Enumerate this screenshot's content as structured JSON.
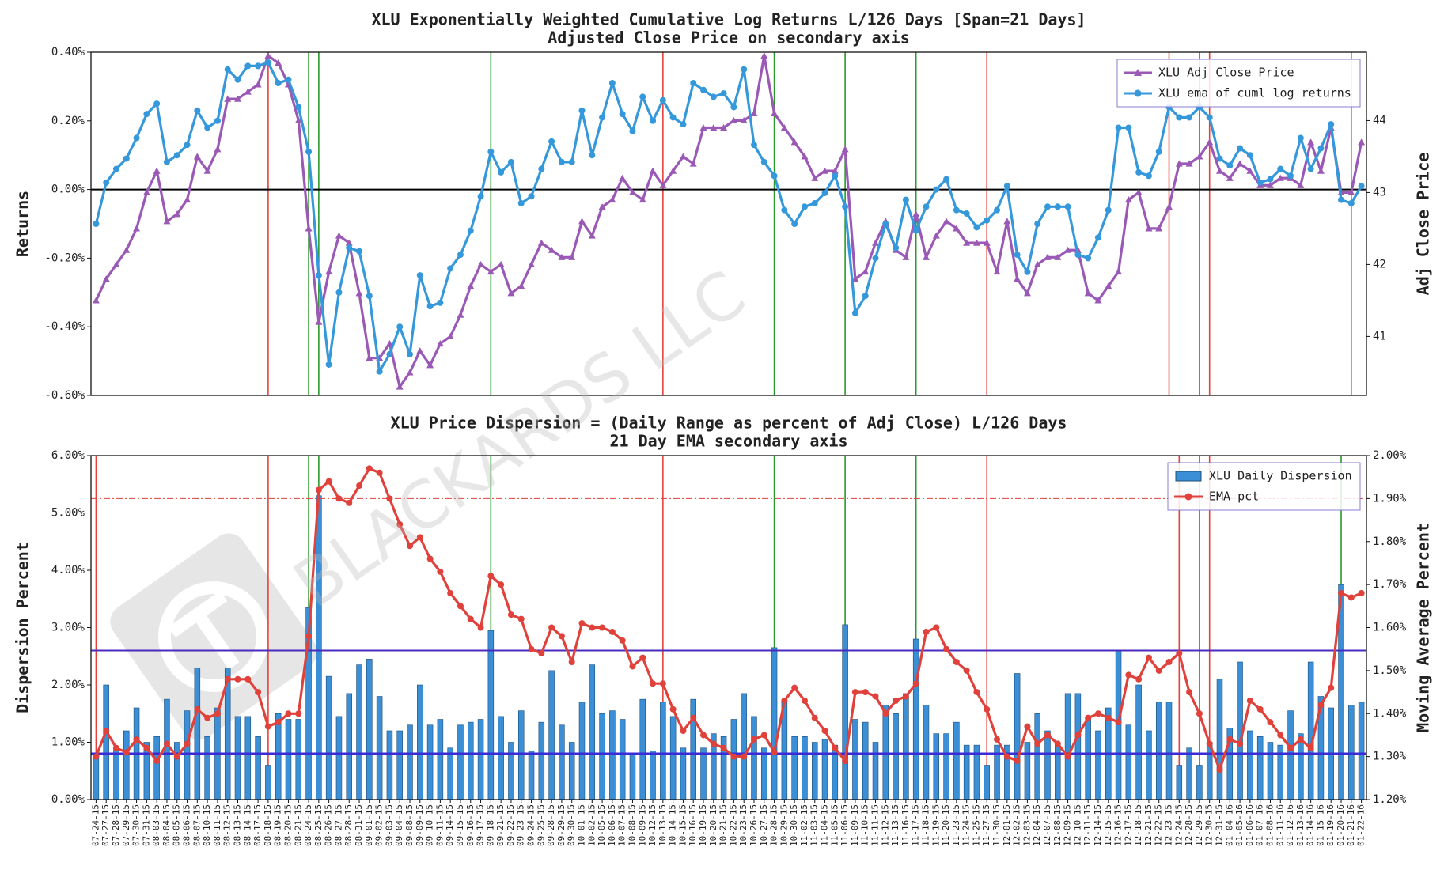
{
  "chart_data": [
    {
      "type": "line",
      "title": "XLU Exponentially Weighted Cumulative Log Returns L/126 Days [Span=21 Days]",
      "subtitle": "Adjusted Close Price on secondary axis",
      "ylabel": "Returns",
      "y2label": "Adj Close Price",
      "ylim": [
        -0.6,
        0.4
      ],
      "yticks": [
        {
          "value": -0.6,
          "label": "-0.60%"
        },
        {
          "value": -0.4,
          "label": "-0.40%"
        },
        {
          "value": -0.2,
          "label": "-0.20%"
        },
        {
          "value": 0,
          "label": "0.00%"
        },
        {
          "value": 0.2,
          "label": "0.20%"
        },
        {
          "value": 0.4,
          "label": "0.40%"
        }
      ],
      "y2lim": [
        40.18,
        44.95
      ],
      "y2ticks": [
        41,
        42,
        43,
        44
      ],
      "legend": "upper right",
      "hlines": [
        {
          "value": 0,
          "color": "#000000",
          "axis": "y"
        }
      ],
      "vlines": [
        {
          "x": "08-18-15",
          "color": "#e8413a"
        },
        {
          "x": "08-24-15",
          "color": "#2a9a2a"
        },
        {
          "x": "08-25-15",
          "color": "#2a9a2a"
        },
        {
          "x": "09-18-15",
          "color": "#2a9a2a"
        },
        {
          "x": "10-13-15",
          "color": "#e8413a"
        },
        {
          "x": "10-28-15",
          "color": "#2a9a2a"
        },
        {
          "x": "11-06-15",
          "color": "#2a9a2a"
        },
        {
          "x": "11-17-15",
          "color": "#2a9a2a"
        },
        {
          "x": "11-27-15",
          "color": "#e8413a"
        },
        {
          "x": "12-23-15",
          "color": "#e8413a"
        },
        {
          "x": "12-29-15",
          "color": "#e8413a"
        },
        {
          "x": "12-30-15",
          "color": "#e8413a"
        },
        {
          "x": "01-21-16",
          "color": "#2a9a2a"
        }
      ],
      "series": [
        {
          "name": "XLU Adj Close Price",
          "color": "#9b59b6",
          "axis": "y2",
          "marker": "triangle",
          "values": [
            41.5,
            41.8,
            42.0,
            42.2,
            42.5,
            43.0,
            43.3,
            42.6,
            42.7,
            42.9,
            43.5,
            43.3,
            43.6,
            44.3,
            44.3,
            44.4,
            44.5,
            44.9,
            44.8,
            44.5,
            44.0,
            42.5,
            41.2,
            41.9,
            42.4,
            42.3,
            41.6,
            40.7,
            40.7,
            40.9,
            40.3,
            40.5,
            40.8,
            40.6,
            40.9,
            41.0,
            41.3,
            41.7,
            42.0,
            41.9,
            42.0,
            41.6,
            41.7,
            42.0,
            42.3,
            42.2,
            42.1,
            42.1,
            42.6,
            42.4,
            42.8,
            42.9,
            43.2,
            43.0,
            42.9,
            43.3,
            43.1,
            43.3,
            43.5,
            43.4,
            43.9,
            43.9,
            43.9,
            44.0,
            44.0,
            44.1,
            44.9,
            44.1,
            43.9,
            43.7,
            43.5,
            43.2,
            43.3,
            43.3,
            43.6,
            41.8,
            41.9,
            42.3,
            42.6,
            42.2,
            42.1,
            42.7,
            42.1,
            42.4,
            42.6,
            42.5,
            42.3,
            42.3,
            42.3,
            41.9,
            42.6,
            41.8,
            41.6,
            42.0,
            42.1,
            42.1,
            42.2,
            42.2,
            41.6,
            41.5,
            41.7,
            41.9,
            42.9,
            43.0,
            42.5,
            42.5,
            42.8,
            43.4,
            43.4,
            43.5,
            43.7,
            43.3,
            43.2,
            43.4,
            43.3,
            43.1,
            43.1,
            43.2,
            43.2,
            43.1,
            43.7,
            43.3,
            43.9,
            43.0,
            43.0,
            43.7
          ]
        },
        {
          "name": "XLU ema of cuml log returns",
          "color": "#3498db",
          "axis": "y",
          "marker": "circle",
          "values": [
            -0.1,
            0.02,
            0.06,
            0.09,
            0.15,
            0.22,
            0.25,
            0.08,
            0.1,
            0.13,
            0.23,
            0.18,
            0.2,
            0.35,
            0.32,
            0.36,
            0.36,
            0.37,
            0.31,
            0.32,
            0.24,
            0.11,
            -0.25,
            -0.51,
            -0.3,
            -0.17,
            -0.18,
            -0.31,
            -0.53,
            -0.48,
            -0.4,
            -0.48,
            -0.25,
            -0.34,
            -0.33,
            -0.23,
            -0.19,
            -0.12,
            -0.02,
            0.11,
            0.05,
            0.08,
            -0.04,
            -0.02,
            0.06,
            0.14,
            0.08,
            0.08,
            0.23,
            0.1,
            0.21,
            0.31,
            0.22,
            0.17,
            0.27,
            0.2,
            0.26,
            0.21,
            0.19,
            0.31,
            0.29,
            0.27,
            0.28,
            0.24,
            0.35,
            0.13,
            0.08,
            0.04,
            -0.06,
            -0.1,
            -0.05,
            -0.04,
            -0.01,
            0.04,
            -0.05,
            -0.36,
            -0.31,
            -0.2,
            -0.1,
            -0.17,
            -0.03,
            -0.12,
            -0.05,
            0.0,
            0.03,
            -0.06,
            -0.07,
            -0.11,
            -0.09,
            -0.06,
            0.01,
            -0.19,
            -0.24,
            -0.1,
            -0.05,
            -0.05,
            -0.05,
            -0.19,
            -0.2,
            -0.14,
            -0.06,
            0.18,
            0.18,
            0.05,
            0.04,
            0.11,
            0.24,
            0.21,
            0.21,
            0.24,
            0.21,
            0.09,
            0.07,
            0.12,
            0.1,
            0.02,
            0.03,
            0.06,
            0.04,
            0.15,
            0.06,
            0.12,
            0.19,
            -0.03,
            -0.04,
            0.01
          ]
        }
      ]
    },
    {
      "type": "bar",
      "title": "XLU Price Dispersion = (Daily Range as percent of Adj Close) L/126 Days",
      "subtitle": "21 Day EMA secondary axis",
      "ylabel": "Dispersion Percent",
      "y2label": "Moving Average Percent",
      "watermark": "BLACKARDS LLC",
      "ylim": [
        0,
        6
      ],
      "yticks": [
        {
          "value": 0,
          "label": "0.00%"
        },
        {
          "value": 1,
          "label": "1.00%"
        },
        {
          "value": 2,
          "label": "2.00%"
        },
        {
          "value": 3,
          "label": "3.00%"
        },
        {
          "value": 4,
          "label": "4.00%"
        },
        {
          "value": 5,
          "label": "5.00%"
        },
        {
          "value": 6,
          "label": "6.00%"
        }
      ],
      "y2lim": [
        1.2,
        2.0
      ],
      "y2ticks": [
        {
          "value": 1.2,
          "label": "1.20%"
        },
        {
          "value": 1.3,
          "label": "1.30%"
        },
        {
          "value": 1.4,
          "label": "1.40%"
        },
        {
          "value": 1.5,
          "label": "1.50%"
        },
        {
          "value": 1.6,
          "label": "1.60%"
        },
        {
          "value": 1.7,
          "label": "1.70%"
        },
        {
          "value": 1.8,
          "label": "1.80%"
        },
        {
          "value": 1.9,
          "label": "1.90%"
        },
        {
          "value": 2.0,
          "label": "2.00%"
        }
      ],
      "legend": "upper right",
      "hlines": [
        {
          "value": 2.6,
          "color": "#4b2bbf",
          "axis": "y",
          "width": 2
        },
        {
          "value": 0.8,
          "color": "#3a2bd6",
          "axis": "y",
          "width": 3
        },
        {
          "value": 1.9,
          "color": "#e0413a",
          "axis": "y2",
          "width": 1,
          "dash": "8 3 2 3"
        }
      ],
      "vlines": [
        {
          "x": "07-24-15",
          "color": "#e8413a"
        },
        {
          "x": "08-18-15",
          "color": "#e8413a"
        },
        {
          "x": "08-24-15",
          "color": "#2a9a2a"
        },
        {
          "x": "08-25-15",
          "color": "#2a9a2a"
        },
        {
          "x": "09-18-15",
          "color": "#2a9a2a"
        },
        {
          "x": "10-13-15",
          "color": "#e8413a"
        },
        {
          "x": "10-28-15",
          "color": "#2a9a2a"
        },
        {
          "x": "11-06-15",
          "color": "#2a9a2a"
        },
        {
          "x": "11-17-15",
          "color": "#2a9a2a"
        },
        {
          "x": "11-27-15",
          "color": "#e8413a"
        },
        {
          "x": "12-24-15",
          "color": "#e8413a"
        },
        {
          "x": "12-29-15",
          "color": "#e8413a"
        },
        {
          "x": "12-30-15",
          "color": "#e8413a"
        },
        {
          "x": "01-20-16",
          "color": "#2a9a2a"
        }
      ],
      "categories": [
        "07-24-15",
        "07-27-15",
        "07-28-15",
        "07-29-15",
        "07-30-15",
        "07-31-15",
        "08-03-15",
        "08-04-15",
        "08-05-15",
        "08-06-15",
        "08-07-15",
        "08-10-15",
        "08-11-15",
        "08-12-15",
        "08-13-15",
        "08-14-15",
        "08-17-15",
        "08-18-15",
        "08-19-15",
        "08-20-15",
        "08-21-15",
        "08-24-15",
        "08-25-15",
        "08-26-15",
        "08-27-15",
        "08-28-15",
        "08-31-15",
        "09-01-15",
        "09-02-15",
        "09-03-15",
        "09-04-15",
        "09-08-15",
        "09-09-15",
        "09-10-15",
        "09-11-15",
        "09-14-15",
        "09-15-15",
        "09-16-15",
        "09-17-15",
        "09-18-15",
        "09-21-15",
        "09-22-15",
        "09-23-15",
        "09-24-15",
        "09-25-15",
        "09-28-15",
        "09-29-15",
        "09-30-15",
        "10-01-15",
        "10-02-15",
        "10-05-15",
        "10-06-15",
        "10-07-15",
        "10-08-15",
        "10-09-15",
        "10-12-15",
        "10-13-15",
        "10-14-15",
        "10-15-15",
        "10-16-15",
        "10-19-15",
        "10-20-15",
        "10-21-15",
        "10-22-15",
        "10-23-15",
        "10-26-15",
        "10-27-15",
        "10-28-15",
        "10-29-15",
        "10-30-15",
        "11-02-15",
        "11-03-15",
        "11-04-15",
        "11-05-15",
        "11-06-15",
        "11-09-15",
        "11-10-15",
        "11-11-15",
        "11-12-15",
        "11-13-15",
        "11-16-15",
        "11-17-15",
        "11-18-15",
        "11-19-15",
        "11-20-15",
        "11-23-15",
        "11-24-15",
        "11-25-15",
        "11-27-15",
        "11-30-15",
        "12-01-15",
        "12-02-15",
        "12-03-15",
        "12-04-15",
        "12-07-15",
        "12-08-15",
        "12-09-15",
        "12-10-15",
        "12-11-15",
        "12-14-15",
        "12-15-15",
        "12-16-15",
        "12-17-15",
        "12-18-15",
        "12-21-15",
        "12-22-15",
        "12-23-15",
        "12-24-15",
        "12-28-15",
        "12-29-15",
        "12-30-15",
        "12-31-15",
        "01-04-16",
        "01-05-16",
        "01-06-16",
        "01-07-16",
        "01-08-16",
        "01-11-16",
        "01-12-16",
        "01-13-16",
        "01-14-16",
        "01-15-16",
        "01-19-16",
        "01-20-16",
        "01-21-16",
        "01-22-16"
      ],
      "series": [
        {
          "name": "XLU Daily Dispersion",
          "type": "bar",
          "color": "#3a8fd6",
          "axis": "y",
          "values": [
            0.8,
            2.0,
            0.9,
            1.2,
            1.6,
            1.0,
            1.1,
            1.75,
            1.0,
            1.55,
            2.3,
            1.1,
            1.6,
            2.3,
            1.45,
            1.45,
            1.1,
            0.6,
            1.5,
            1.4,
            1.4,
            3.35,
            5.3,
            2.15,
            1.45,
            1.85,
            2.35,
            2.45,
            1.8,
            1.2,
            1.2,
            1.3,
            2.0,
            1.3,
            1.4,
            0.9,
            1.3,
            1.35,
            1.4,
            2.95,
            1.45,
            1.0,
            1.55,
            0.85,
            1.35,
            2.25,
            1.3,
            1.0,
            1.7,
            2.35,
            1.5,
            1.55,
            1.4,
            0.8,
            1.75,
            0.85,
            1.7,
            1.45,
            0.9,
            1.75,
            0.9,
            1.15,
            1.1,
            1.4,
            1.85,
            1.45,
            0.9,
            2.65,
            1.7,
            1.1,
            1.1,
            1.0,
            1.05,
            0.95,
            3.05,
            1.4,
            1.35,
            1.0,
            1.65,
            1.5,
            1.85,
            2.8,
            1.65,
            1.15,
            1.15,
            1.35,
            0.95,
            0.95,
            0.6,
            0.95,
            0.95,
            2.2,
            1.0,
            1.5,
            1.2,
            0.95,
            1.85,
            1.85,
            1.45,
            1.2,
            1.6,
            2.6,
            1.3,
            2.0,
            1.2,
            1.7,
            1.7,
            0.6,
            0.9,
            0.6,
            1.0,
            2.1,
            1.25,
            2.4,
            1.2,
            1.1,
            1.0,
            0.95,
            1.55,
            1.15,
            2.4,
            1.8,
            1.6,
            3.75,
            1.65,
            1.7
          ]
        },
        {
          "name": "EMA pct",
          "type": "line",
          "color": "#e0413a",
          "axis": "y2",
          "values": [
            1.3,
            1.36,
            1.32,
            1.31,
            1.34,
            1.32,
            1.29,
            1.33,
            1.3,
            1.33,
            1.41,
            1.39,
            1.4,
            1.48,
            1.48,
            1.48,
            1.45,
            1.37,
            1.38,
            1.4,
            1.4,
            1.58,
            1.92,
            1.94,
            1.9,
            1.89,
            1.93,
            1.97,
            1.96,
            1.9,
            1.84,
            1.79,
            1.81,
            1.76,
            1.73,
            1.68,
            1.65,
            1.62,
            1.6,
            1.72,
            1.7,
            1.63,
            1.62,
            1.55,
            1.54,
            1.6,
            1.58,
            1.52,
            1.61,
            1.6,
            1.6,
            1.59,
            1.57,
            1.51,
            1.53,
            1.47,
            1.47,
            1.41,
            1.36,
            1.39,
            1.35,
            1.33,
            1.32,
            1.3,
            1.3,
            1.34,
            1.35,
            1.31,
            1.43,
            1.46,
            1.43,
            1.39,
            1.36,
            1.32,
            1.29,
            1.45,
            1.45,
            1.44,
            1.4,
            1.43,
            1.44,
            1.47,
            1.59,
            1.6,
            1.55,
            1.52,
            1.5,
            1.45,
            1.41,
            1.34,
            1.3,
            1.29,
            1.37,
            1.33,
            1.35,
            1.33,
            1.3,
            1.35,
            1.39,
            1.4,
            1.39,
            1.38,
            1.49,
            1.48,
            1.53,
            1.5,
            1.52,
            1.54,
            1.45,
            1.4,
            1.33,
            1.27,
            1.34,
            1.33,
            1.43,
            1.41,
            1.38,
            1.35,
            1.32,
            1.34,
            1.32,
            1.42,
            1.46,
            1.68,
            1.67,
            1.68
          ]
        }
      ]
    }
  ]
}
